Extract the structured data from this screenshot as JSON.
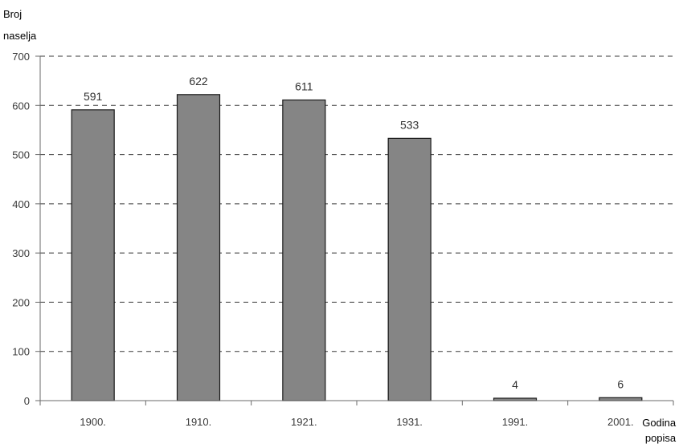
{
  "chart_data": {
    "type": "bar",
    "categories": [
      "1900.",
      "1910.",
      "1921.",
      "1931.",
      "1991.",
      "2001."
    ],
    "values": [
      591,
      622,
      611,
      533,
      4,
      6
    ],
    "data_labels": [
      "591",
      "622",
      "611",
      "533",
      "4",
      "6"
    ],
    "ylabel_lines": [
      "Broj",
      "naselja"
    ],
    "xlabel_lines": [
      "Godina",
      "popisa"
    ],
    "ylim": [
      0,
      700
    ],
    "yticks": [
      0,
      100,
      200,
      300,
      400,
      500,
      600,
      700
    ],
    "ytick_labels": [
      "0",
      "100",
      "200",
      "300",
      "400",
      "500",
      "600",
      "700"
    ],
    "grid": "dashed horizontal",
    "bar_color": "#858585",
    "bar_border_color": "#1a1a1a",
    "grid_color": "#3a3a3a",
    "axis_color": "#6a6a6a"
  }
}
